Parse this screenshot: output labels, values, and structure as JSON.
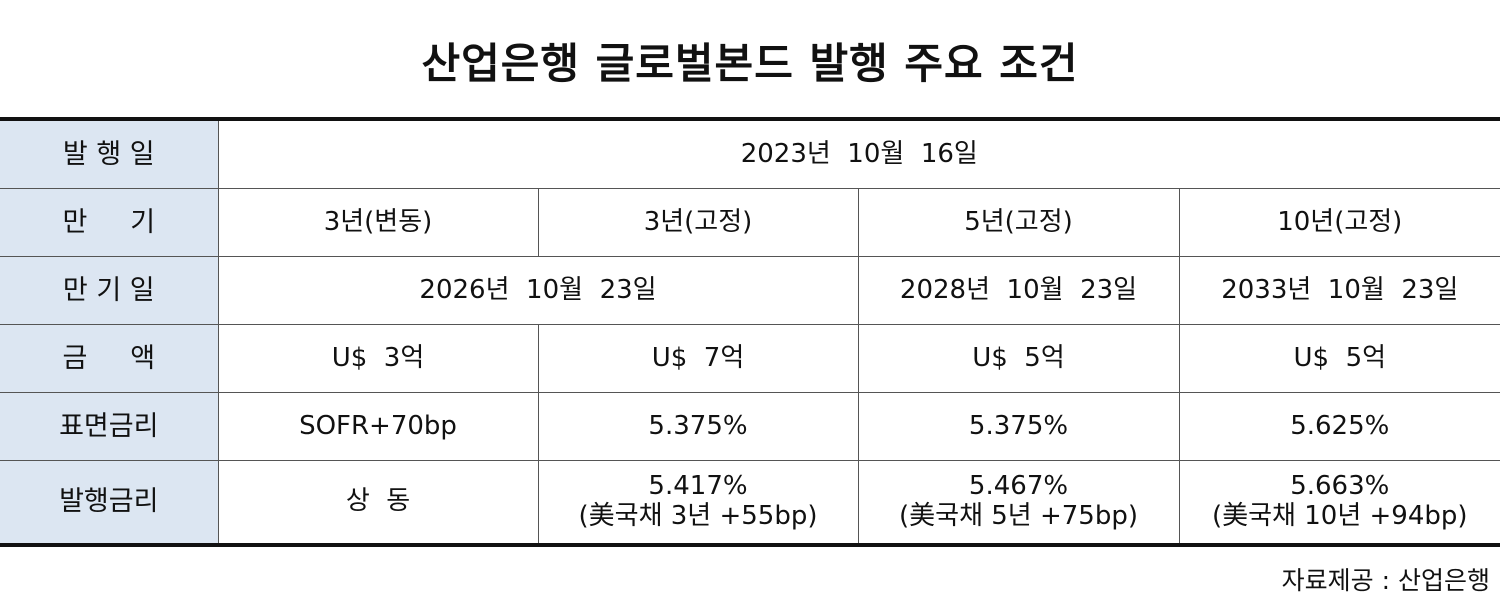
{
  "title": "산업은행 글로벌본드 발행 주요 조건",
  "rows": {
    "issue_date": {
      "label": "발 행 일",
      "value": "2023년  10월  16일"
    },
    "maturity": {
      "label": "만     기",
      "values": [
        "3년(변동)",
        "3년(고정)",
        "5년(고정)",
        "10년(고정)"
      ]
    },
    "maturity_date": {
      "label": "만 기 일",
      "values": [
        "2026년  10월  23일",
        "2028년  10월  23일",
        "2033년  10월  23일"
      ]
    },
    "amount": {
      "label": "금     액",
      "values": [
        "U$  3억",
        "U$  7억",
        "U$  5억",
        "U$  5억"
      ]
    },
    "coupon": {
      "label": "표면금리",
      "values": [
        "SOFR+70bp",
        "5.375%",
        "5.375%",
        "5.625%"
      ]
    },
    "issue_rate": {
      "label": "발행금리",
      "values": [
        {
          "line1": "상  동",
          "line2": ""
        },
        {
          "line1": "5.417%",
          "line2": "(美국채 3년 +55bp)"
        },
        {
          "line1": "5.467%",
          "line2": "(美국채 5년 +75bp)"
        },
        {
          "line1": "5.663%",
          "line2": "(美국채 10년 +94bp)"
        }
      ]
    }
  },
  "source": "자료제공 : 산업은행",
  "colors": {
    "label_background": "#dce6f2",
    "border": "#555555",
    "rule": "#111111"
  }
}
